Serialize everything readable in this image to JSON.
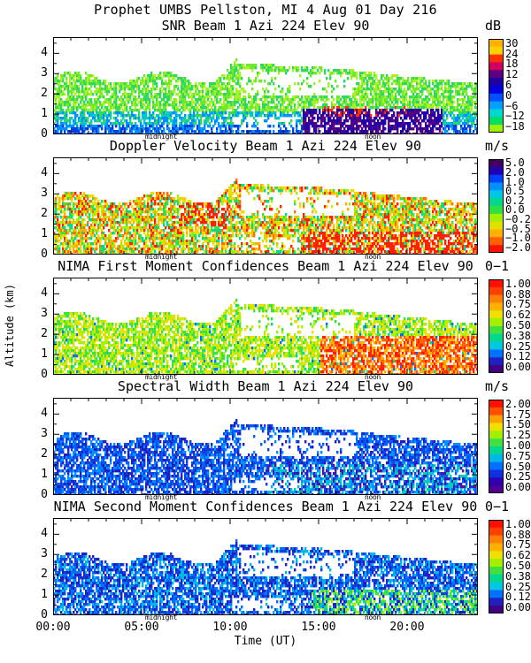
{
  "header": {
    "line1": "Prophet  UMBS Pellston, MI   4 Aug 01 Day 216"
  },
  "markers": {
    "midnight": "midnight",
    "noon": "noon"
  },
  "y_axis_label": "Altitude (km)",
  "x_axis_label": "Time (UT)",
  "x_ticks": [
    "00:00",
    "05:00",
    "10:00",
    "15:00",
    "20:00"
  ],
  "y_ticks": [
    "0",
    "1",
    "2",
    "3",
    "4"
  ],
  "chart_data": [
    {
      "type": "heatmap",
      "title": "SNR Beam 1 Azi 224 Elev 90",
      "unit": "dB",
      "xlabel": "Time (UT)",
      "ylabel": "Altitude (km)",
      "xlim": [
        0,
        24
      ],
      "ylim": [
        0,
        4.8
      ],
      "colorbar_ticks": [
        "30",
        "24",
        "18",
        "12",
        "6",
        "0",
        "−6",
        "−12",
        "−18"
      ],
      "colorbar_colors": [
        "#ffb000",
        "#ffd000",
        "#ff3000",
        "#d00060",
        "#5a0080",
        "#2000a0",
        "#0000e0",
        "#0050ff",
        "#00a0ff",
        "#00d8d0",
        "#00e060",
        "#a0f000"
      ],
      "pixel_colors": [
        "#a8f028",
        "#70e830",
        "#30d860",
        "#00c8c8",
        "#0090ff",
        "#0040e0",
        "#2000a8",
        "#580080",
        "#ff3000"
      ]
    },
    {
      "type": "heatmap",
      "title": "Doppler Velocity Beam 1 Azi 224 Elev 90",
      "unit": "m/s",
      "xlabel": "Time (UT)",
      "ylabel": "Altitude (km)",
      "xlim": [
        0,
        24
      ],
      "ylim": [
        0,
        4.8
      ],
      "colorbar_ticks": [
        "5.0",
        "2.0",
        "1.0",
        "0.5",
        "0.2",
        "0.0",
        "−0.2",
        "−0.5",
        "−1.0",
        "−2.0"
      ],
      "colorbar_colors": [
        "#400060",
        "#2000b0",
        "#0040ff",
        "#0090ff",
        "#00c8e0",
        "#00d890",
        "#30e040",
        "#a0f000",
        "#e0e000",
        "#ffb000",
        "#ff6000",
        "#ff1000"
      ],
      "pixel_colors": [
        "#e8e000",
        "#ffb000",
        "#ff7000",
        "#a0f000",
        "#40e040",
        "#ff2000",
        "#00d890",
        "#ffd000"
      ]
    },
    {
      "type": "heatmap",
      "title": "NIMA First Moment Confidences Beam 1 Azi 224 Elev 90",
      "unit": "0−1",
      "xlabel": "Time (UT)",
      "ylabel": "Altitude (km)",
      "xlim": [
        0,
        24
      ],
      "ylim": [
        0,
        4.8
      ],
      "colorbar_ticks": [
        "1.00",
        "0.88",
        "0.75",
        "0.62",
        "0.50",
        "0.38",
        "0.25",
        "0.12",
        "0.00"
      ],
      "colorbar_colors": [
        "#ff1000",
        "#ff4000",
        "#ff8000",
        "#ffb000",
        "#f0e000",
        "#a0f000",
        "#40e040",
        "#00d890",
        "#00c8e0",
        "#0070ff",
        "#2020c0",
        "#400080"
      ],
      "pixel_colors": [
        "#a8f000",
        "#e8e000",
        "#40e040",
        "#ffb000",
        "#ff6000",
        "#ff2000",
        "#00d890",
        "#0070ff"
      ]
    },
    {
      "type": "heatmap",
      "title": "Spectral Width Beam 1 Azi 224 Elev 90",
      "unit": "m/s",
      "xlabel": "Time (UT)",
      "ylabel": "Altitude (km)",
      "xlim": [
        0,
        24
      ],
      "ylim": [
        0,
        4.8
      ],
      "colorbar_ticks": [
        "2.00",
        "1.75",
        "1.50",
        "1.25",
        "1.00",
        "0.75",
        "0.50",
        "0.25",
        "0.00"
      ],
      "colorbar_colors": [
        "#ff1000",
        "#ff5000",
        "#ffa000",
        "#f0e000",
        "#a0f000",
        "#40e040",
        "#00d890",
        "#00b8e8",
        "#0070ff",
        "#1030e0",
        "#3000b0",
        "#500090"
      ],
      "pixel_colors": [
        "#1040e0",
        "#0060ff",
        "#0090ff",
        "#2020c0",
        "#00b8e8",
        "#5010a0",
        "#00d0b0"
      ]
    },
    {
      "type": "heatmap",
      "title": "NIMA Second Moment Confidences Beam 1 Azi 224 Elev 90",
      "unit": "0−1",
      "xlabel": "Time (UT)",
      "ylabel": "Altitude (km)",
      "xlim": [
        0,
        24
      ],
      "ylim": [
        0,
        4.8
      ],
      "colorbar_ticks": [
        "1.00",
        "0.88",
        "0.75",
        "0.62",
        "0.50",
        "0.38",
        "0.25",
        "0.12",
        "0.00"
      ],
      "colorbar_colors": [
        "#ff1000",
        "#ff4000",
        "#ff8000",
        "#ffb000",
        "#f0e000",
        "#a0f000",
        "#40e040",
        "#00d890",
        "#00c8e0",
        "#0070ff",
        "#2020c0",
        "#400080"
      ],
      "pixel_colors": [
        "#1040e0",
        "#0070ff",
        "#2020c0",
        "#00b8e8",
        "#40e040",
        "#a0f000",
        "#00d890"
      ]
    }
  ]
}
